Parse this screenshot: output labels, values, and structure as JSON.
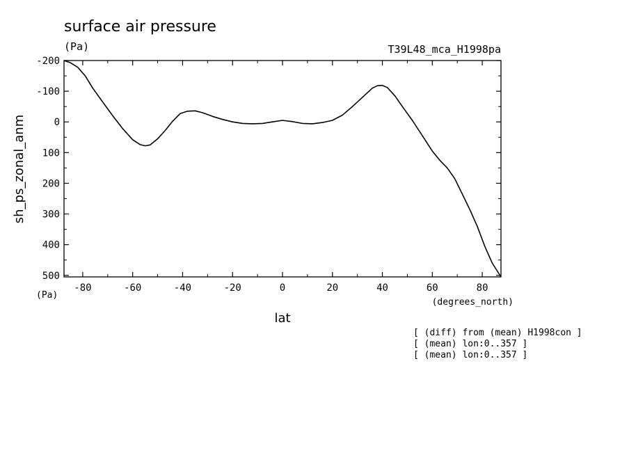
{
  "chart_data": {
    "type": "line",
    "title": "surface air pressure",
    "title_units": "(Pa)",
    "run_label": "T39L48_mca_H1998pa",
    "xlabel": "lat",
    "x_units": "(degrees_north)",
    "ylabel": "sh_ps_zonal_anm",
    "y_units": "(Pa)",
    "xlim": [
      -87.5,
      87.5
    ],
    "ylim": [
      -200,
      505
    ],
    "y_inverted": true,
    "x_ticks": [
      -80,
      -60,
      -40,
      -20,
      0,
      20,
      40,
      60,
      80
    ],
    "x_tick_labels": [
      "-80",
      "-60",
      "-40",
      "-20",
      "0",
      "20",
      "40",
      "60",
      "80"
    ],
    "y_ticks": [
      -200,
      -100,
      0,
      100,
      200,
      300,
      400,
      500
    ],
    "y_tick_labels": [
      "-200",
      "-100",
      "0",
      "100",
      "200",
      "300",
      "400",
      "500"
    ],
    "grid": false,
    "series": [
      {
        "x": [
          -87.5,
          -85,
          -82,
          -79,
          -76,
          -72,
          -68,
          -64,
          -60,
          -57,
          -55,
          -53,
          -50,
          -47,
          -44,
          -41,
          -38,
          -35,
          -32,
          -28,
          -24,
          -20,
          -16,
          -12,
          -8,
          -4,
          0,
          4,
          8,
          12,
          16,
          20,
          24,
          28,
          32,
          36,
          38,
          40,
          42,
          45,
          48,
          52,
          56,
          60,
          63,
          66,
          69,
          72,
          75,
          78,
          81,
          84,
          87.5
        ],
        "y": [
          -200,
          -193,
          -178,
          -150,
          -110,
          -65,
          -20,
          22,
          58,
          74,
          78,
          75,
          55,
          28,
          -2,
          -27,
          -35,
          -36,
          -30,
          -18,
          -8,
          0,
          5,
          6,
          5,
          0,
          -5,
          -1,
          5,
          6,
          2,
          -5,
          -22,
          -50,
          -80,
          -110,
          -118,
          -119,
          -112,
          -85,
          -50,
          -5,
          45,
          95,
          125,
          150,
          185,
          235,
          285,
          340,
          405,
          460,
          505
        ]
      }
    ],
    "annotations": [
      "[ (diff) from (mean) H1998con ]",
      "[ (mean) lon:0..357 ]",
      "[ (mean) lon:0..357 ]"
    ]
  }
}
